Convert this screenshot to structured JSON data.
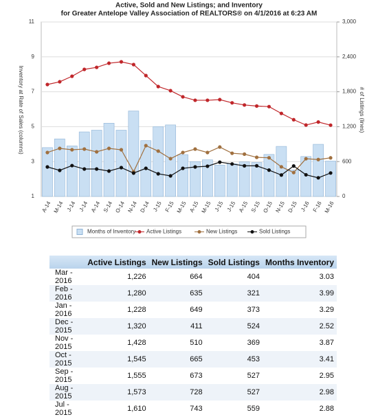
{
  "chart_data": {
    "type": "bar-line",
    "title": "Active, Sold and New Listings; and Inventory",
    "subtitle": "for Greater Antelope Valley Association of REALTORS® on 4/1/2016 at 6:23 AM",
    "ylabel": "Inventory at Rate of Sales (columns)",
    "y2label": "# of Listings (lines)",
    "categories": [
      "A-14",
      "M-14",
      "J-14",
      "J-14",
      "A-14",
      "S-14",
      "O-14",
      "N-14",
      "D-14",
      "J-15",
      "F-15",
      "M-15",
      "A-15",
      "M-15",
      "J-15",
      "J-15",
      "A-15",
      "S-15",
      "O-15",
      "N-15",
      "D-15",
      "J-16",
      "F-16",
      "M-16"
    ],
    "ylim": [
      1,
      11
    ],
    "yticks": [
      1,
      3,
      5,
      7,
      9,
      11
    ],
    "y2lim": [
      0,
      3000
    ],
    "y2ticks": [
      0,
      600,
      {
        "value": 1200,
        "label": "1,200"
      },
      {
        "value": 1800,
        "label": "1,800"
      },
      {
        "value": 2400,
        "label": "2,400"
      },
      {
        "value": 3000,
        "label": "3,000"
      }
    ],
    "grid": true,
    "series": [
      {
        "name": "Months of Inventory",
        "kind": "bar",
        "color": "#c9dff3",
        "values": [
          3.8,
          4.3,
          3.9,
          4.7,
          4.8,
          5.2,
          4.8,
          5.9,
          4.2,
          5.0,
          5.1,
          3.4,
          3.0,
          3.1,
          2.8,
          2.88,
          2.98,
          2.95,
          3.41,
          3.87,
          2.52,
          3.29,
          3.99,
          3.03
        ]
      },
      {
        "name": "Active Listings",
        "kind": "line",
        "axis": "y2",
        "color": "#c0262a",
        "values": [
          1925,
          1972,
          2067,
          2185,
          2220,
          2291,
          2315,
          2268,
          2079,
          1890,
          1819,
          1713,
          1654,
          1654,
          1665,
          1610,
          1573,
          1555,
          1545,
          1428,
          1320,
          1228,
          1280,
          1226
        ]
      },
      {
        "name": "New Listings",
        "kind": "line",
        "axis": "y2",
        "color": "#a0703f",
        "values": [
          756,
          827,
          803,
          815,
          768,
          827,
          803,
          425,
          874,
          780,
          650,
          756,
          815,
          756,
          850,
          743,
          728,
          673,
          665,
          510,
          411,
          649,
          635,
          664
        ]
      },
      {
        "name": "Sold Listings",
        "kind": "line",
        "axis": "y2",
        "color": "#111111",
        "values": [
          508,
          449,
          531,
          472,
          472,
          437,
          496,
          402,
          484,
          390,
          354,
          484,
          508,
          520,
          590,
          559,
          527,
          527,
          453,
          369,
          524,
          373,
          321,
          404
        ]
      }
    ]
  },
  "table": {
    "columns": [
      "Active Listings",
      "New Listings",
      "Sold Listings",
      "Months Inventory"
    ],
    "rows": [
      [
        "Mar - 2016",
        "1,226",
        "664",
        "404",
        "3.03"
      ],
      [
        "Feb - 2016",
        "1,280",
        "635",
        "321",
        "3.99"
      ],
      [
        "Jan - 2016",
        "1,228",
        "649",
        "373",
        "3.29"
      ],
      [
        "Dec - 2015",
        "1,320",
        "411",
        "524",
        "2.52"
      ],
      [
        "Nov - 2015",
        "1,428",
        "510",
        "369",
        "3.87"
      ],
      [
        "Oct - 2015",
        "1,545",
        "665",
        "453",
        "3.41"
      ],
      [
        "Sep - 2015",
        "1,555",
        "673",
        "527",
        "2.95"
      ],
      [
        "Aug - 2015",
        "1,573",
        "728",
        "527",
        "2.98"
      ],
      [
        "Jul - 2015",
        "1,610",
        "743",
        "559",
        "2.88"
      ]
    ]
  }
}
